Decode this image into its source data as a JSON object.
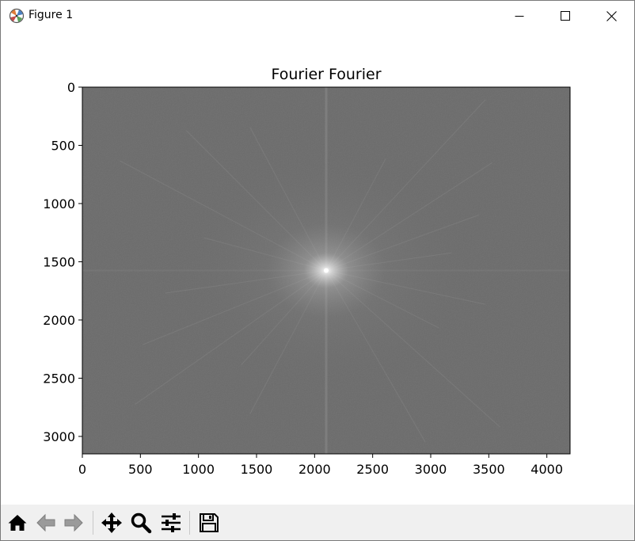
{
  "window": {
    "title": "Figure 1",
    "controls": {
      "minimize": "minimize-icon",
      "maximize": "maximize-icon",
      "close": "close-icon"
    }
  },
  "chart_data": {
    "type": "heatmap",
    "title": "Fourier Fourier",
    "xlabel": "",
    "ylabel": "",
    "xlim": [
      0,
      4200
    ],
    "ylim": [
      3150,
      0
    ],
    "x_ticks": [
      "0",
      "500",
      "1000",
      "1500",
      "2000",
      "2500",
      "3000",
      "3500",
      "4000"
    ],
    "y_ticks": [
      "0",
      "500",
      "1000",
      "1500",
      "2000",
      "2500",
      "3000"
    ],
    "x_tick_values": [
      0,
      500,
      1000,
      1500,
      2000,
      2500,
      3000,
      3500,
      4000
    ],
    "y_tick_values": [
      0,
      500,
      1000,
      1500,
      2000,
      2500,
      3000
    ],
    "center": [
      2100,
      1575
    ],
    "colormap": "gray",
    "grid": false,
    "background_color": "#6b6b6b",
    "peak_color": "#ffffff"
  },
  "toolbar": {
    "buttons": [
      {
        "name": "home-button",
        "icon": "home-icon",
        "enabled": true
      },
      {
        "name": "back-button",
        "icon": "arrow-left-icon",
        "enabled": false
      },
      {
        "name": "forward-button",
        "icon": "arrow-right-icon",
        "enabled": false
      },
      {
        "name": "pan-button",
        "icon": "move-icon",
        "enabled": true
      },
      {
        "name": "zoom-button",
        "icon": "magnifier-icon",
        "enabled": true
      },
      {
        "name": "configure-subplots-button",
        "icon": "sliders-icon",
        "enabled": true
      },
      {
        "name": "save-button",
        "icon": "floppy-disk-icon",
        "enabled": true
      }
    ]
  }
}
